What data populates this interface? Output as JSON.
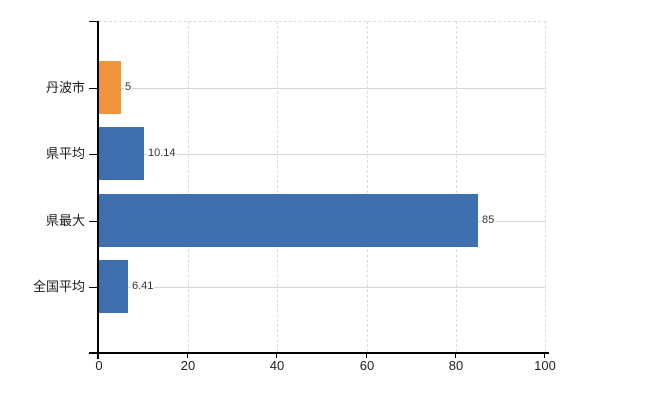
{
  "chart_data": {
    "type": "bar",
    "orientation": "horizontal",
    "title": "",
    "xlabel": "",
    "ylabel": "",
    "categories": [
      "丹波市",
      "県平均",
      "県最大",
      "全国平均"
    ],
    "values": [
      5,
      10.14,
      85,
      6.41
    ],
    "value_labels": [
      "5",
      "10.14",
      "85",
      "6.41"
    ],
    "bar_colors": [
      "#f0943c",
      "#3f6fae",
      "#3f6fae",
      "#3f6fae"
    ],
    "xlim": [
      0,
      100
    ],
    "x_ticks": [
      0,
      20,
      40,
      60,
      80,
      100
    ],
    "x_tick_labels": [
      "0",
      "20",
      "40",
      "60",
      "80",
      "100"
    ],
    "grid": {
      "horizontal": "solid",
      "vertical": "dashed",
      "top_border": "dashed"
    },
    "legend": null,
    "colors": {
      "bar_highlight": "#f0943c",
      "bar_default": "#3f6fae",
      "h_gridline": "#d2d8d0",
      "v_gridline": "#dcdcdc",
      "axis": "#000000",
      "category_text": "#1a1a1a",
      "tick_text": "#222222",
      "value_text": "#333333",
      "background": "#ffffff"
    }
  }
}
